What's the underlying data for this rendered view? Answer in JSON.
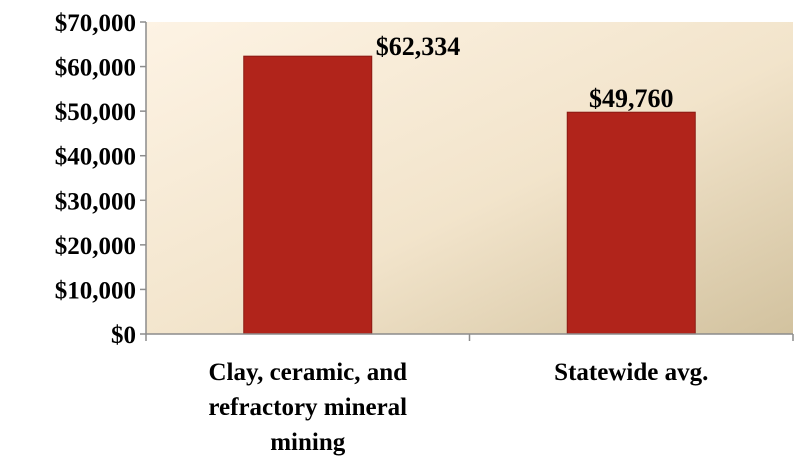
{
  "chart_data": {
    "type": "bar",
    "title": "",
    "xlabel": "",
    "ylabel": "",
    "categories": [
      [
        "Clay, ceramic, and",
        "refractory mineral",
        "mining"
      ],
      [
        "Statewide avg."
      ]
    ],
    "values": [
      62334,
      49760
    ],
    "data_labels": [
      "$62,334",
      "$49,760"
    ],
    "ylim": [
      0,
      70000
    ],
    "yticks": [
      0,
      10000,
      20000,
      30000,
      40000,
      50000,
      60000,
      70000
    ],
    "ytick_labels": [
      "$0",
      "$10,000",
      "$20,000",
      "$30,000",
      "$40,000",
      "$50,000",
      "$60,000",
      "$70,000"
    ],
    "grid": false,
    "legend": "none",
    "colors": {
      "bar": "#B1241B",
      "bar_edge": "#8A1A13",
      "plot_bg_light": "#FDF3E4",
      "plot_bg_mid": "#F2E4CB",
      "plot_bg_dark": "#D2C29F",
      "axis": "#8C8C8C"
    }
  }
}
